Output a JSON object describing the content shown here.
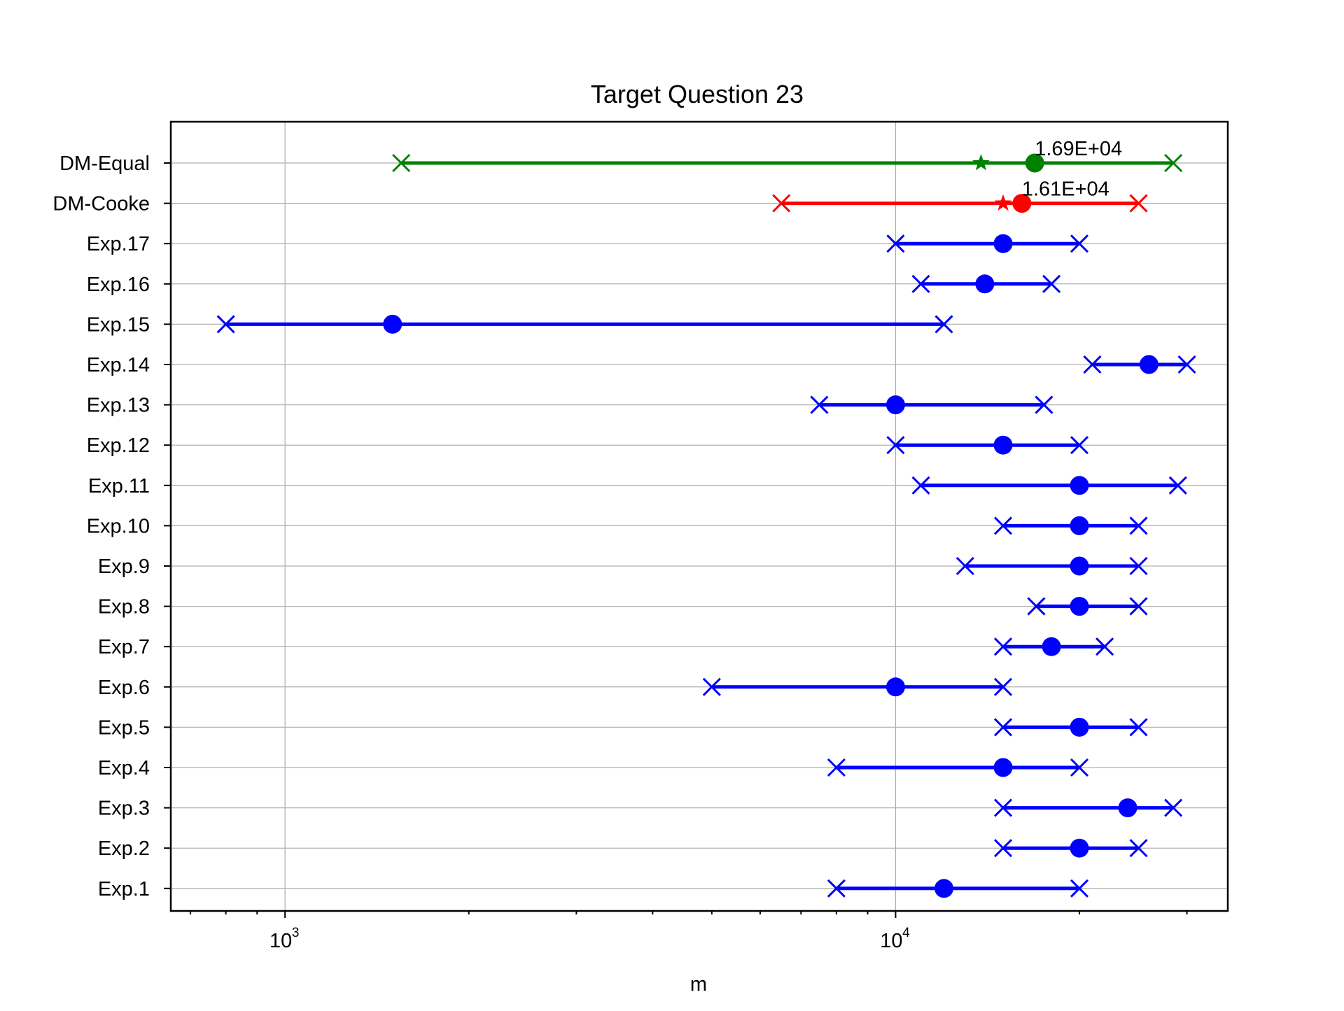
{
  "colors": {
    "experts": "#0000ff",
    "dm_cooke": "#ff0000",
    "dm_equal": "#008000",
    "grid": "#b0b0b0"
  },
  "chart_data": {
    "type": "errorbar",
    "title": "Target Question 23",
    "xlabel": "m",
    "ylabel": "",
    "xscale": "log",
    "xlim": [
      650,
      35000
    ],
    "grid": true,
    "x_ticks": [
      {
        "value": 1000,
        "base": "10",
        "exp": "3"
      },
      {
        "value": 10000,
        "base": "10",
        "exp": "4"
      }
    ],
    "categories": [
      "DM-Equal",
      "DM-Cooke",
      "Exp.17",
      "Exp.16",
      "Exp.15",
      "Exp.14",
      "Exp.13",
      "Exp.12",
      "Exp.11",
      "Exp.10",
      "Exp.9",
      "Exp.8",
      "Exp.7",
      "Exp.6",
      "Exp.5",
      "Exp.4",
      "Exp.3",
      "Exp.2",
      "Exp.1"
    ],
    "series": [
      {
        "label": "DM-Equal",
        "group": "dm_equal",
        "low": 1550,
        "median": 16900,
        "high": 28500,
        "star": 13800,
        "annotation": "1.69E+04"
      },
      {
        "label": "DM-Cooke",
        "group": "dm_cooke",
        "low": 6500,
        "median": 16100,
        "high": 25000,
        "star": 15000,
        "annotation": "1.61E+04"
      },
      {
        "label": "Exp.17",
        "group": "experts",
        "low": 10000,
        "median": 15000,
        "high": 20000
      },
      {
        "label": "Exp.16",
        "group": "experts",
        "low": 11000,
        "median": 14000,
        "high": 18000
      },
      {
        "label": "Exp.15",
        "group": "experts",
        "low": 800,
        "median": 1500,
        "high": 12000
      },
      {
        "label": "Exp.14",
        "group": "experts",
        "low": 21000,
        "median": 26000,
        "high": 30000
      },
      {
        "label": "Exp.13",
        "group": "experts",
        "low": 7500,
        "median": 10000,
        "high": 17500
      },
      {
        "label": "Exp.12",
        "group": "experts",
        "low": 10000,
        "median": 15000,
        "high": 20000
      },
      {
        "label": "Exp.11",
        "group": "experts",
        "low": 11000,
        "median": 20000,
        "high": 29000
      },
      {
        "label": "Exp.10",
        "group": "experts",
        "low": 15000,
        "median": 20000,
        "high": 25000
      },
      {
        "label": "Exp.9",
        "group": "experts",
        "low": 13000,
        "median": 20000,
        "high": 25000
      },
      {
        "label": "Exp.8",
        "group": "experts",
        "low": 17000,
        "median": 20000,
        "high": 25000
      },
      {
        "label": "Exp.7",
        "group": "experts",
        "low": 15000,
        "median": 18000,
        "high": 22000
      },
      {
        "label": "Exp.6",
        "group": "experts",
        "low": 5000,
        "median": 10000,
        "high": 15000
      },
      {
        "label": "Exp.5",
        "group": "experts",
        "low": 15000,
        "median": 20000,
        "high": 25000
      },
      {
        "label": "Exp.4",
        "group": "experts",
        "low": 8000,
        "median": 15000,
        "high": 20000
      },
      {
        "label": "Exp.3",
        "group": "experts",
        "low": 15000,
        "median": 24000,
        "high": 28500
      },
      {
        "label": "Exp.2",
        "group": "experts",
        "low": 15000,
        "median": 20000,
        "high": 25000
      },
      {
        "label": "Exp.1",
        "group": "experts",
        "low": 8000,
        "median": 12000,
        "high": 20000
      }
    ]
  }
}
